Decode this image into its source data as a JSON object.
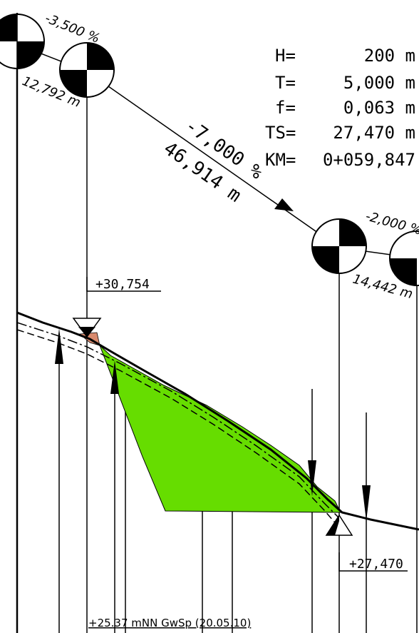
{
  "params": {
    "H_label": "H=",
    "H_value": "200 m",
    "T_label": "T=",
    "T_value": "5,000 m",
    "f_label": "f=",
    "f_value": "0,063 m",
    "TS_label": "TS=",
    "TS_value": "27,470 m",
    "KM_label": "KM=",
    "KM_value": "0+059,847"
  },
  "grades": {
    "g1_pct": "-3,500 %",
    "g1_len": "12,792 m",
    "g2_pct": "-7,000 %",
    "g2_len": "46,914 m",
    "g3_pct": "-2,000 %",
    "g3_len": "14,442 m"
  },
  "elevations": {
    "pvi_left": "+30,754",
    "pvi_right": "+27,470"
  },
  "groundwater": "+25.37 mNN GwSp (20.05.10)",
  "colors": {
    "fill_cut": "#66dd00",
    "fill_embankment": "#d98a6e",
    "line": "#000000"
  }
}
